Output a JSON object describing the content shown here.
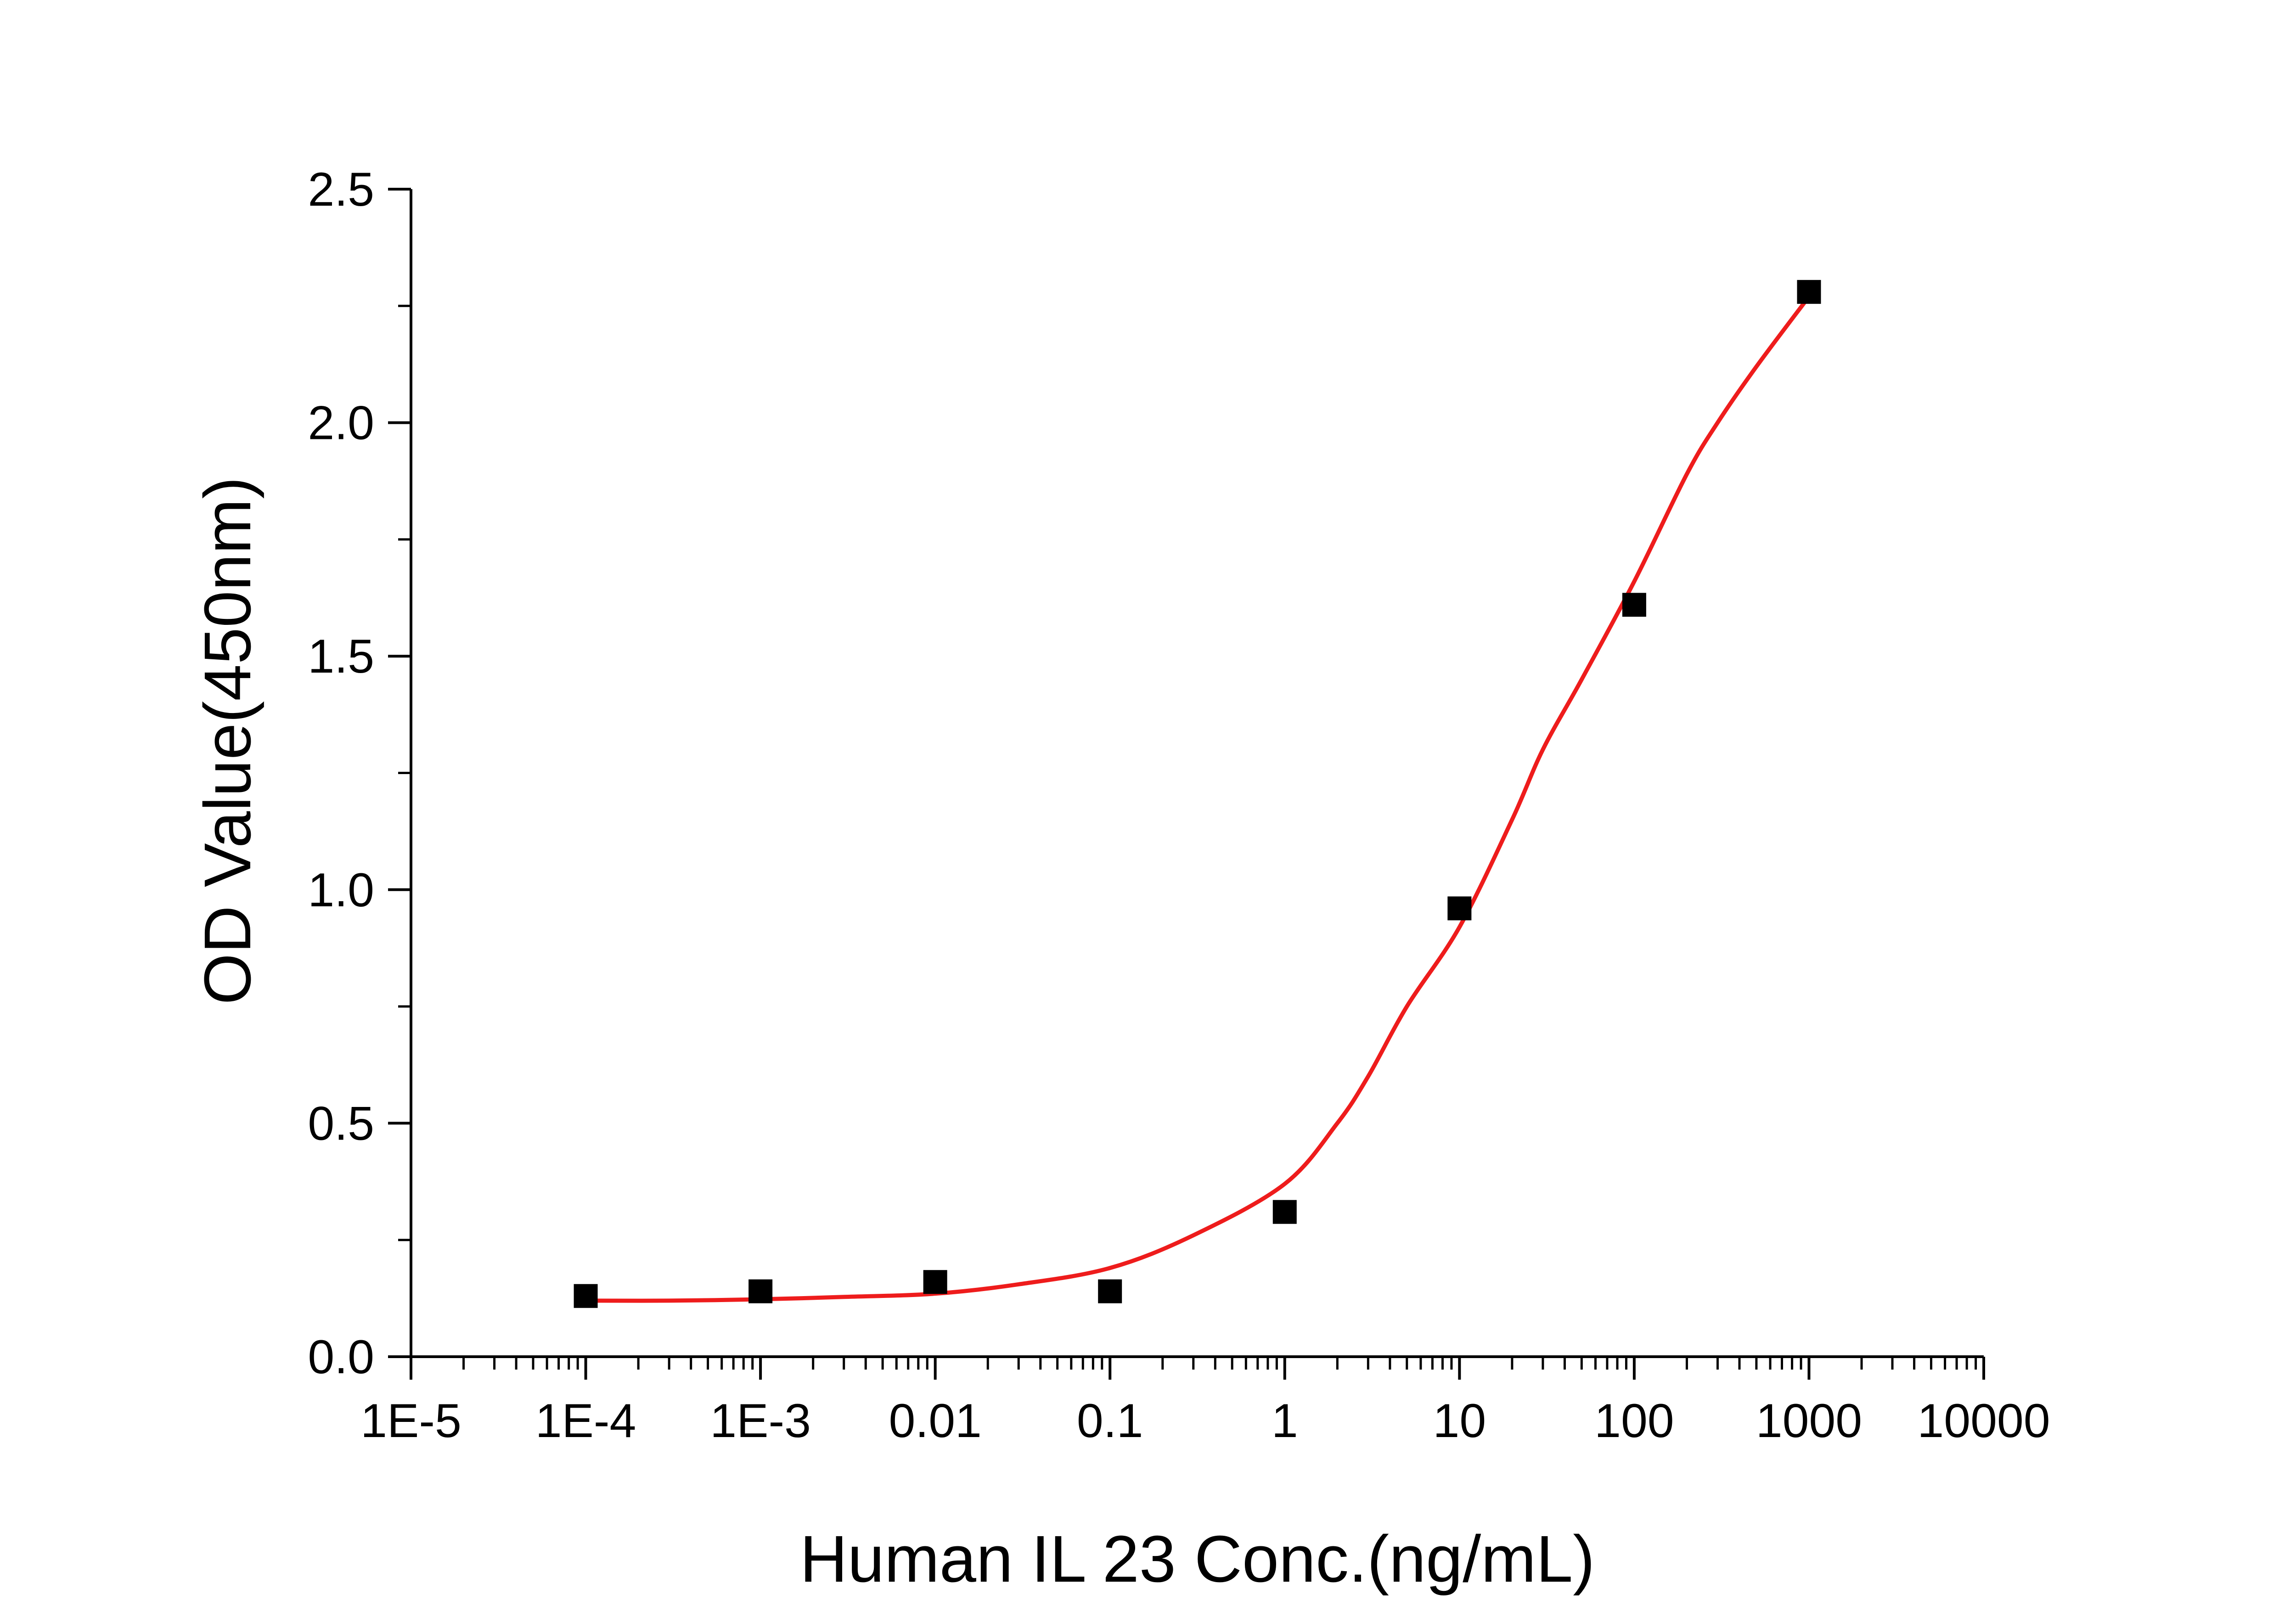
{
  "chart_data": {
    "type": "scatter",
    "title": "",
    "xlabel": "Human IL 23 Conc.(ng/mL)",
    "ylabel": "OD Value(450nm)",
    "x_scale": "log",
    "xlim": [
      1e-05,
      10000
    ],
    "ylim": [
      0,
      2.5
    ],
    "grid": false,
    "x_ticks": [
      "1E-5",
      "1E-4",
      "1E-3",
      "0.01",
      "0.1",
      "1",
      "10",
      "100",
      "1000",
      "10000"
    ],
    "y_ticks": [
      "0.0",
      "0.5",
      "1.0",
      "1.5",
      "2.0",
      "2.5"
    ],
    "series": [
      {
        "kind": "points",
        "marker": "square",
        "color": "#000000",
        "x": [
          0.0001,
          0.001,
          0.01,
          0.1,
          1,
          10,
          100,
          1000
        ],
        "y": [
          0.13,
          0.14,
          0.16,
          0.14,
          0.31,
          0.96,
          1.61,
          2.28
        ]
      },
      {
        "kind": "fit-curve",
        "color": "#ee1c1c",
        "x": [
          0.0001,
          0.0003,
          0.001,
          0.003,
          0.01,
          0.03,
          0.1,
          0.3,
          1,
          2,
          3,
          5,
          10,
          20,
          30,
          50,
          100,
          200,
          300,
          500,
          1000
        ],
        "y": [
          0.12,
          0.12,
          0.123,
          0.128,
          0.135,
          0.155,
          0.19,
          0.26,
          0.37,
          0.5,
          0.6,
          0.75,
          0.92,
          1.15,
          1.3,
          1.45,
          1.66,
          1.89,
          2.0,
          2.12,
          2.27
        ]
      }
    ]
  }
}
